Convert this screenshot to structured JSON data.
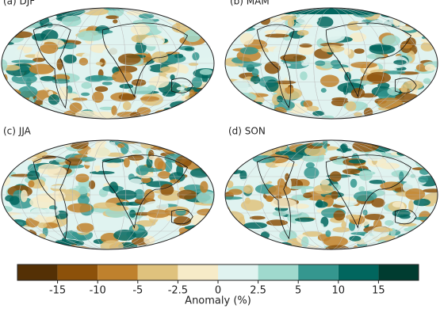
{
  "panels": [
    {
      "label": "(a) DJF"
    },
    {
      "label": "(b) MAM"
    },
    {
      "label": "(c) JJA"
    },
    {
      "label": "(d) SON"
    }
  ],
  "colorbar": {
    "label": "Anomaly (%)",
    "ticks": [
      -15,
      -10,
      -5,
      -2.5,
      0,
      2.5,
      5,
      10,
      15
    ],
    "colors": [
      "#543005",
      "#8c510a",
      "#bf812d",
      "#dfc27d",
      "#f6ebc8",
      "#e0f3f0",
      "#9fd9cd",
      "#35978f",
      "#01665e",
      "#003c30"
    ]
  }
}
